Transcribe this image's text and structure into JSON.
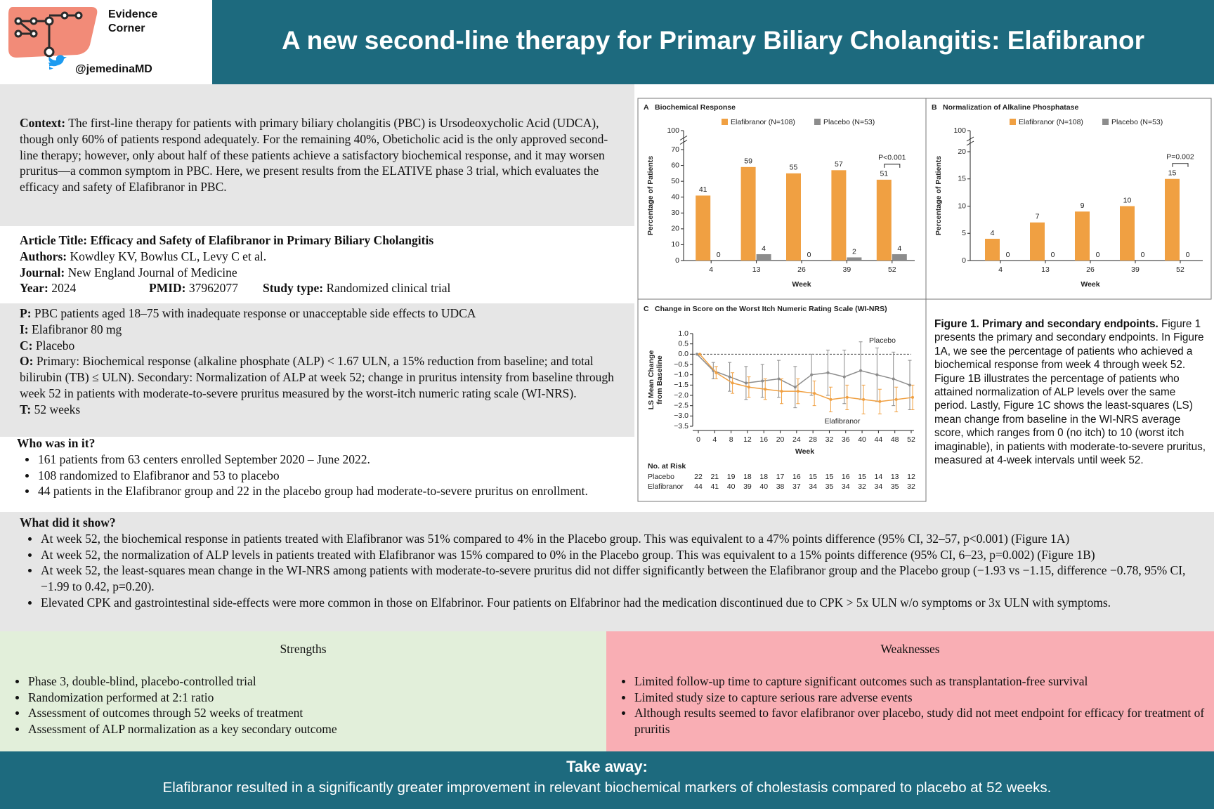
{
  "header": {
    "brand": [
      "Evidence",
      "Corner"
    ],
    "handle": "@jemedinaMD",
    "title": "A new second-line therapy for Primary Biliary Cholangitis: Elafibranor"
  },
  "context": {
    "label": "Context:",
    "text": "The first-line therapy for patients with primary biliary cholangitis (PBC) is Ursodeoxycholic Acid (UDCA), though only 60% of patients respond adequately. For the remaining 40%, Obeticholic acid is the only approved second-line therapy; however, only about half of these patients achieve a satisfactory biochemical response, and it may worsen pruritus—a common symptom in PBC. Here, we present results from the ELATIVE phase 3 trial, which evaluates the efficacy and safety of Elafibranor in PBC."
  },
  "article": {
    "lines": [
      [
        "Article Title:",
        "Efficacy and Safety of Elafibranor in Primary Biliary Cholangitis"
      ],
      [
        "Authors:",
        "Kowdley KV, Bowlus CL, Levy C et al."
      ],
      [
        "Journal:",
        "New England Journal of Medicine"
      ]
    ],
    "meta": [
      [
        "Year:",
        "2024"
      ],
      [
        "PMID:",
        "37962077"
      ],
      [
        "Study type:",
        "Randomized clinical trial"
      ]
    ]
  },
  "pico": [
    [
      "P:",
      "PBC patients aged 18–75 with inadequate response or unacceptable side effects to UDCA"
    ],
    [
      "I:",
      "Elafibranor 80 mg"
    ],
    [
      "C:",
      "Placebo"
    ],
    [
      "O:",
      "Primary: Biochemical response (alkaline phosphate (ALP) < 1.67 ULN, a 15% reduction from baseline; and total bilirubin (TB) ≤ ULN). Secondary: Normalization of ALP at week 52; change in pruritus intensity from baseline through week 52 in patients with moderate-to-severe pruritus measured by the worst-itch numeric rating scale (WI-NRS)."
    ],
    [
      "T:",
      "52 weeks"
    ]
  ],
  "who": {
    "heading": "Who was in it?",
    "items": [
      "161 patients from 63 centers enrolled September 2020 – June 2022.",
      "108 randomized to Elafibranor and 53 to placebo",
      "44 patients in the Elafibranor group and 22 in the placebo group had moderate-to-severe pruritus on enrollment."
    ]
  },
  "results": {
    "heading": "What did it show?",
    "items": [
      "At week 52, the biochemical response in patients treated with Elafibranor was 51% compared to 4% in the Placebo group. This was equivalent to a 47% points difference (95% CI, 32–57, p<0.001) (Figure 1A)",
      "At week 52, the normalization of ALP levels in patients treated with Elafibranor was 15% compared to 0% in the Placebo group. This was equivalent to a 15% points difference (95% CI, 6–23, p=0.002) (Figure 1B)",
      "At week 52, the least-squares mean change in the WI-NRS among patients with moderate-to-severe pruritus did not differ significantly between the Elafibranor group and the Placebo group (−1.93 vs −1.15, difference −0.78, 95% CI, −1.99 to 0.42, p=0.20).",
      "Elevated CPK and gastrointestinal side-effects were more common in those on Elfabrinor. Four patients on Elfabrinor had the medication discontinued due to CPK > 5x ULN w/o symptoms or 3x ULN with symptoms."
    ]
  },
  "strengths": {
    "heading": "Strengths",
    "items": [
      "Phase 3, double-blind, placebo-controlled trial",
      "Randomization performed at 2:1 ratio",
      "Assessment of outcomes through 52 weeks of treatment",
      "Assessment of ALP normalization as a key secondary outcome"
    ]
  },
  "weaknesses": {
    "heading": "Weaknesses",
    "items": [
      "Limited follow-up time to capture significant outcomes such as transplantation-free survival",
      "Limited study size to capture serious rare adverse events",
      "Although results seemed to favor elafibranor over placebo, study did not meet endpoint for efficacy for treatment of pruritis"
    ]
  },
  "takeaway": {
    "heading": "Take away:",
    "text": "Elafibranor resulted in a significantly greater improvement in relevant biochemical markers of cholestasis compared to placebo at 52 weeks."
  },
  "figure": {
    "caption_label": "Figure 1. Primary and secondary endpoints.",
    "caption": "Figure 1 presents the primary and secondary endpoints. In Figure 1A, we see the percentage of patients who achieved a biochemical response from week 4 through week 52. Figure 1B illustrates the percentage of patients who attained normalization of ALP levels over the same period. Lastly, Figure 1C shows the least-squares (LS) mean change from baseline in the WI-NRS average score, which ranges from 0 (no itch) to 10 (worst itch imaginable), in patients with moderate-to-severe pruritus, measured at 4-week intervals until week 52.",
    "bar_panels": [
      {
        "type": "bar",
        "letter": "A",
        "title": "Biochemical Response",
        "categories": [
          "4",
          "13",
          "26",
          "39",
          "52"
        ],
        "series": [
          {
            "name": "Elafibranor (N=108)",
            "color": "#f0a042",
            "values": [
              41,
              59,
              55,
              57,
              51
            ]
          },
          {
            "name": "Placebo (N=53)",
            "color": "#8c8c8c",
            "values": [
              0,
              4,
              0,
              2,
              4
            ]
          }
        ],
        "ylim": [
          0,
          70
        ],
        "yticks": [
          0,
          10,
          20,
          30,
          40,
          50,
          60,
          70,
          100
        ],
        "axis_break": true,
        "xlabel": "Week",
        "ylabel": "Percentage of Patients",
        "annotation": "P<0.001"
      },
      {
        "type": "bar",
        "letter": "B",
        "title": "Normalization of Alkaline Phosphatase",
        "categories": [
          "4",
          "13",
          "26",
          "39",
          "52"
        ],
        "series": [
          {
            "name": "Elafibranor (N=108)",
            "color": "#f0a042",
            "values": [
              4,
              7,
              9,
              10,
              15
            ]
          },
          {
            "name": "Placebo (N=53)",
            "color": "#8c8c8c",
            "values": [
              0,
              0,
              0,
              0,
              0
            ]
          }
        ],
        "ylim": [
          0,
          20
        ],
        "yticks": [
          0,
          5,
          10,
          15,
          20,
          100
        ],
        "axis_break": true,
        "xlabel": "Week",
        "ylabel": "Percentage of Patients",
        "annotation": "P=0.002"
      }
    ],
    "line_panel": {
      "type": "line",
      "letter": "C",
      "title": "Change in Score on the Worst Itch Numeric Rating Scale (WI-NRS)",
      "x": [
        0,
        4,
        8,
        12,
        16,
        20,
        24,
        28,
        32,
        36,
        40,
        44,
        48,
        52
      ],
      "xlim": [
        0,
        52
      ],
      "ylim": [
        -3.5,
        1
      ],
      "yticks": [
        {
          "value": 1,
          "label": "1.0"
        },
        0.5,
        {
          "value": 0,
          "label": "0.0"
        },
        {
          "value": -0.5,
          "label": "−0.5"
        },
        {
          "value": -1,
          "label": "−1.0"
        },
        {
          "value": -1.5,
          "label": "−1.5"
        },
        {
          "value": -2,
          "label": "−2.0"
        },
        {
          "value": -2.5,
          "label": "−2.5"
        },
        {
          "value": -3,
          "label": "−3.0"
        },
        {
          "value": -3.5,
          "label": "−3.5"
        }
      ],
      "series": [
        {
          "name": "Placebo",
          "color": "#8c8c8c",
          "values": [
            0,
            -0.8,
            -1.1,
            -1.4,
            -1.3,
            -1.2,
            -1.6,
            -1.0,
            -0.9,
            -1.1,
            -0.8,
            -1.0,
            -1.2,
            -1.5
          ],
          "errors": [
            0,
            0.4,
            0.7,
            0.8,
            0.8,
            0.9,
            1.0,
            1.0,
            1.1,
            1.3,
            1.4,
            1.3,
            1.3,
            1.2
          ]
        },
        {
          "name": "Elafibranor",
          "color": "#f0a042",
          "values": [
            0,
            -0.9,
            -1.4,
            -1.6,
            -1.7,
            -1.8,
            -1.8,
            -1.9,
            -2.2,
            -2.1,
            -2.2,
            -2.3,
            -2.2,
            -2.1
          ],
          "errors": [
            0,
            0.3,
            0.5,
            0.5,
            0.5,
            0.6,
            0.6,
            0.6,
            0.6,
            0.6,
            0.7,
            0.6,
            0.6,
            0.6
          ]
        }
      ],
      "xlabel": "Week",
      "ylabel": [
        "LS Mean Change",
        "from Baseline"
      ],
      "at_risk": {
        "label": "No. at Risk",
        "rows": [
          {
            "name": "Placebo",
            "values": [
              22,
              21,
              19,
              18,
              18,
              17,
              16,
              15,
              15,
              16,
              15,
              14,
              13,
              12
            ]
          },
          {
            "name": "Elafibranor",
            "values": [
              44,
              41,
              40,
              39,
              40,
              38,
              37,
              34,
              35,
              34,
              32,
              34,
              35,
              32
            ]
          }
        ]
      }
    }
  }
}
